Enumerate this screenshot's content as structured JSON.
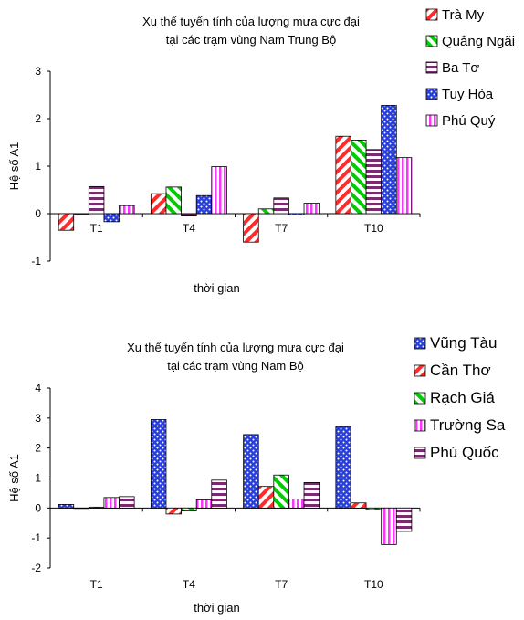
{
  "chart_data": [
    {
      "type": "bar",
      "title": "Xu thế tuyến tính của lượng mưa cực đại\ntại các trạm vùng Nam Trung Bộ",
      "xlabel": "thời gian",
      "ylabel": "Hệ số A1",
      "ylim": [
        -1,
        3
      ],
      "yticks": [
        -1,
        0,
        1,
        2,
        3
      ],
      "grid": false,
      "legend": "right",
      "categories": [
        "T1",
        "T4",
        "T7",
        "T10"
      ],
      "series": [
        {
          "name": "Trà My",
          "pattern": "diagonal",
          "color": "#ff2a2a",
          "values": [
            -0.35,
            0.42,
            -0.6,
            1.63
          ]
        },
        {
          "name": "Quảng Ngãi",
          "pattern": "vertical",
          "color": "#00cc00",
          "values": [
            0.0,
            0.56,
            0.1,
            1.55
          ]
        },
        {
          "name": "Ba Tơ",
          "pattern": "horizontal",
          "color": "#7a2a6e",
          "values": [
            0.57,
            -0.05,
            0.33,
            1.35
          ]
        },
        {
          "name": "Tuy Hòa",
          "pattern": "dots",
          "color": "#2a3fd6",
          "values": [
            -0.17,
            0.38,
            -0.03,
            2.28
          ]
        },
        {
          "name": "Phú Quý",
          "pattern": "vstripes",
          "color": "#ff33ff",
          "values": [
            0.17,
            0.99,
            0.22,
            1.18
          ]
        }
      ]
    },
    {
      "type": "bar",
      "title": "Xu thế tuyến tính của lượng mưa cực đại\ntại các trạm vùng Nam Bộ",
      "xlabel": "thời gian",
      "ylabel": "Hệ số A1",
      "ylim": [
        -2,
        4
      ],
      "yticks": [
        -2,
        -1,
        0,
        1,
        2,
        3,
        4
      ],
      "grid": false,
      "legend": "right",
      "categories": [
        "T1",
        "T4",
        "T7",
        "T10"
      ],
      "series": [
        {
          "name": "Vũng Tàu",
          "pattern": "dots",
          "color": "#2a3fd6",
          "values": [
            0.12,
            2.95,
            2.45,
            2.72
          ]
        },
        {
          "name": "Cần Thơ",
          "pattern": "diagonal",
          "color": "#ff2a2a",
          "values": [
            0.0,
            -0.2,
            0.72,
            0.17
          ]
        },
        {
          "name": "Rạch Giá",
          "pattern": "vertical",
          "color": "#00cc00",
          "values": [
            0.03,
            -0.1,
            1.1,
            -0.05
          ]
        },
        {
          "name": "Trường Sa",
          "pattern": "vstripes",
          "color": "#ff33ff",
          "values": [
            0.35,
            0.27,
            0.3,
            -1.22
          ]
        },
        {
          "name": "Phú Quốc",
          "pattern": "horizontal",
          "color": "#7a2a6e",
          "values": [
            0.38,
            0.93,
            0.85,
            -0.78
          ]
        }
      ]
    }
  ]
}
